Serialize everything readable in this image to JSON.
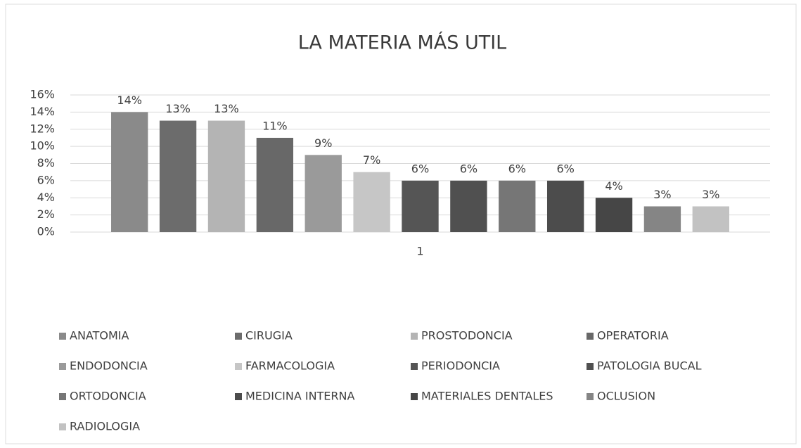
{
  "chart_data": {
    "type": "bar",
    "title": "LA MATERIA MÁS UTIL",
    "categories": [
      "1"
    ],
    "series": [
      {
        "name": "ANATOMIA",
        "color": "#8a8a8a",
        "values": [
          14
        ],
        "value_labels": [
          "14%"
        ]
      },
      {
        "name": "CIRUGIA",
        "color": "#6c6c6c",
        "values": [
          13
        ],
        "value_labels": [
          "13%"
        ]
      },
      {
        "name": "PROSTODONCIA",
        "color": "#b4b4b4",
        "values": [
          13
        ],
        "value_labels": [
          "13%"
        ]
      },
      {
        "name": "OPERATORIA",
        "color": "#686868",
        "values": [
          11
        ],
        "value_labels": [
          "11%"
        ]
      },
      {
        "name": "ENDODONCIA",
        "color": "#9a9a9a",
        "values": [
          9
        ],
        "value_labels": [
          "9%"
        ]
      },
      {
        "name": "FARMACOLOGIA",
        "color": "#c6c6c6",
        "values": [
          7
        ],
        "value_labels": [
          "7%"
        ]
      },
      {
        "name": "PERIODONCIA",
        "color": "#555555",
        "values": [
          6
        ],
        "value_labels": [
          "6%"
        ]
      },
      {
        "name": "PATOLOGIA BUCAL",
        "color": "#505050",
        "values": [
          6
        ],
        "value_labels": [
          "6%"
        ]
      },
      {
        "name": "ORTODONCIA",
        "color": "#767676",
        "values": [
          6
        ],
        "value_labels": [
          "6%"
        ]
      },
      {
        "name": "MEDICINA INTERNA",
        "color": "#4c4c4c",
        "values": [
          6
        ],
        "value_labels": [
          "6%"
        ]
      },
      {
        "name": "MATERIALES DENTALES",
        "color": "#464646",
        "values": [
          4
        ],
        "value_labels": [
          "4%"
        ]
      },
      {
        "name": "OCLUSION",
        "color": "#858585",
        "values": [
          3
        ],
        "value_labels": [
          "3%"
        ]
      },
      {
        "name": "RADIOLOGIA",
        "color": "#c2c2c2",
        "values": [
          3
        ],
        "value_labels": [
          "3%"
        ]
      }
    ],
    "ylim": [
      0,
      16
    ],
    "yticks": [
      {
        "value": 0,
        "label": "0%"
      },
      {
        "value": 2,
        "label": "2%"
      },
      {
        "value": 4,
        "label": "4%"
      },
      {
        "value": 6,
        "label": "6%"
      },
      {
        "value": 8,
        "label": "8%"
      },
      {
        "value": 10,
        "label": "10%"
      },
      {
        "value": 12,
        "label": "12%"
      },
      {
        "value": 14,
        "label": "14%"
      },
      {
        "value": 16,
        "label": "16%"
      }
    ],
    "grid": true,
    "legend": "bottom"
  }
}
